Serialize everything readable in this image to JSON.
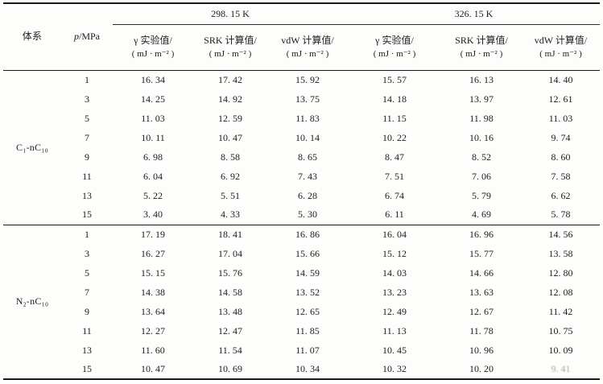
{
  "table": {
    "header": {
      "system_label": "体系",
      "pressure_label_italic": "p",
      "pressure_label_rest": "/MPa",
      "groups": [
        {
          "temperature": "298. 15 K",
          "columns": [
            {
              "line1": "γ 实验值/",
              "line2": "( mJ · m⁻² )"
            },
            {
              "line1": "SRK 计算值/",
              "line2": "( mJ · m⁻² )"
            },
            {
              "line1": "vdW 计算值/",
              "line2": "( mJ · m⁻² )"
            }
          ]
        },
        {
          "temperature": "326. 15 K",
          "columns": [
            {
              "line1": "γ 实验值/",
              "line2": "( mJ · m⁻² )"
            },
            {
              "line1": "SRK 计算值/",
              "line2": "( mJ · m⁻² )"
            },
            {
              "line1": "vdW 计算值/",
              "line2": "( mJ · m⁻² )"
            }
          ]
        }
      ]
    },
    "sections": [
      {
        "system": "C₁-nC₁₀",
        "rows": [
          {
            "p": "1",
            "values": [
              "16. 34",
              "17. 42",
              "15. 92",
              "15. 57",
              "16. 13",
              "14. 40"
            ]
          },
          {
            "p": "3",
            "values": [
              "14. 25",
              "14. 92",
              "13. 75",
              "14. 18",
              "13. 97",
              "12. 61"
            ]
          },
          {
            "p": "5",
            "values": [
              "11. 03",
              "12. 59",
              "11. 83",
              "11. 15",
              "11. 98",
              "11. 03"
            ]
          },
          {
            "p": "7",
            "values": [
              "10. 11",
              "10. 47",
              "10. 14",
              "10. 22",
              "10. 16",
              "9. 74"
            ]
          },
          {
            "p": "9",
            "values": [
              "6. 98",
              "8. 58",
              "8. 65",
              "8. 47",
              "8. 52",
              "8. 60"
            ]
          },
          {
            "p": "11",
            "values": [
              "6. 04",
              "6. 92",
              "7. 43",
              "7. 51",
              "7. 06",
              "7. 58"
            ]
          },
          {
            "p": "13",
            "values": [
              "5. 22",
              "5. 51",
              "6. 28",
              "6. 74",
              "5. 79",
              "6. 62"
            ]
          },
          {
            "p": "15",
            "values": [
              "3. 40",
              "4. 33",
              "5. 30",
              "6. 11",
              "4. 69",
              "5. 78"
            ]
          }
        ]
      },
      {
        "system": "N₂-nC₁₀",
        "rows": [
          {
            "p": "1",
            "values": [
              "17. 19",
              "18. 41",
              "16. 86",
              "16. 04",
              "16. 96",
              "14. 56"
            ]
          },
          {
            "p": "3",
            "values": [
              "16. 27",
              "17. 04",
              "15. 66",
              "15. 12",
              "15. 77",
              "13. 58"
            ]
          },
          {
            "p": "5",
            "values": [
              "15. 15",
              "15. 76",
              "14. 59",
              "14. 03",
              "14. 66",
              "12. 80"
            ]
          },
          {
            "p": "7",
            "values": [
              "14. 38",
              "14. 58",
              "13. 52",
              "13. 23",
              "13. 63",
              "12. 08"
            ]
          },
          {
            "p": "9",
            "values": [
              "13. 64",
              "13. 48",
              "12. 65",
              "12. 49",
              "12. 67",
              "11. 42"
            ]
          },
          {
            "p": "11",
            "values": [
              "12. 27",
              "12. 47",
              "11. 85",
              "11. 13",
              "11. 78",
              "10. 75"
            ]
          },
          {
            "p": "13",
            "values": [
              "11. 60",
              "11. 54",
              "11. 07",
              "10. 45",
              "10. 96",
              "10. 09"
            ]
          },
          {
            "p": "15",
            "values": [
              "10. 47",
              "10. 69",
              "10. 34",
              "10. 32",
              "10. 20",
              "9. 41"
            ]
          }
        ]
      }
    ],
    "print_artifact": {
      "section": 1,
      "row": 7,
      "col": 5,
      "note": "last vdW value is faded/illegible in scan"
    }
  }
}
